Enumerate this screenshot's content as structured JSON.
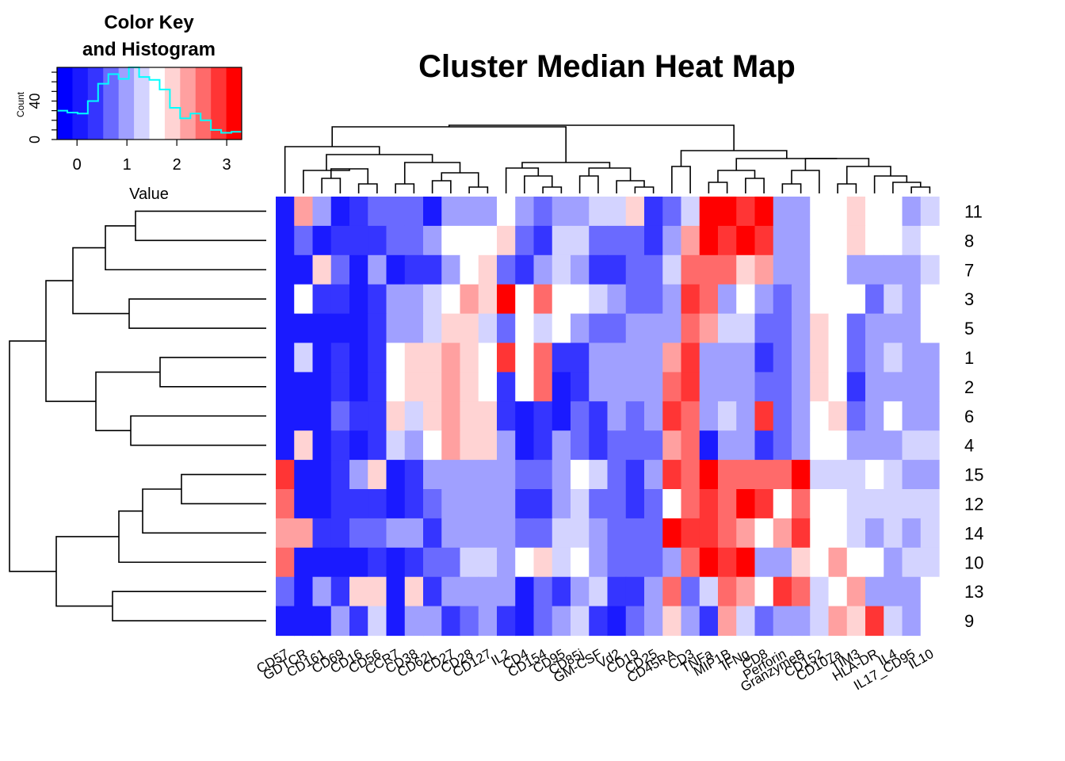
{
  "chart_data": {
    "type": "heatmap",
    "title": "Cluster Median Heat Map",
    "columns": [
      "CD57",
      "GDTCR",
      "CD161",
      "CD69",
      "CD16",
      "CD56",
      "CCR7",
      "CD38",
      "CD62L",
      "CD27",
      "CD28",
      "CD127",
      "IL2",
      "CD4",
      "CD154",
      "CD95",
      "CD85j",
      "GM-CSF",
      "Vd2",
      "CD19",
      "CD25",
      "CD45RA",
      "CD3",
      "TNFa",
      "MIP1B",
      "IFNg",
      "CD8",
      "Perforin",
      "GranzymeB",
      "CD152",
      "CD107a",
      "TIM3",
      "HLA-DR",
      "IL4",
      "IL17_CD95",
      "IL10"
    ],
    "rows": [
      "11",
      "8",
      "7",
      "3",
      "5",
      "1",
      "2",
      "6",
      "4",
      "15",
      "12",
      "14",
      "10",
      "13",
      "9"
    ],
    "values": [
      [
        0,
        2.3,
        0.9,
        0.1,
        0.3,
        0.6,
        0.6,
        0.8,
        0.2,
        0.9,
        0.9,
        1.1,
        1.6,
        1.1,
        0.6,
        0.9,
        1.1,
        1.4,
        1.4,
        2,
        0.4,
        0.6,
        1.4,
        3.2,
        3.3,
        2.7,
        3.2,
        0.9,
        1.1,
        1.7,
        1.7,
        2,
        1.7,
        1.7,
        0.9,
        1.4
      ],
      [
        0,
        0.6,
        0,
        0.3,
        0.3,
        0.4,
        0.6,
        0.6,
        1.1,
        1.7,
        1.7,
        1.7,
        2,
        0.6,
        0.4,
        1.4,
        1.4,
        0.6,
        0.6,
        0.6,
        0.4,
        1.1,
        2.3,
        3,
        2.7,
        3.2,
        2.7,
        0.9,
        1.1,
        1.7,
        1.7,
        2,
        1.7,
        1.7,
        1.4,
        1.7
      ],
      [
        0,
        0,
        1.9,
        0.6,
        0.1,
        1.1,
        0,
        0.4,
        0.4,
        1.1,
        1.7,
        1.9,
        0.6,
        0.4,
        0.9,
        1.4,
        1.1,
        0.4,
        0.4,
        0.6,
        0.6,
        1.4,
        2.4,
        2.4,
        2.4,
        1.9,
        2.2,
        1.1,
        1.1,
        1.7,
        1.7,
        1.1,
        1.1,
        1.1,
        1.1,
        1.4
      ],
      [
        0,
        1.7,
        0.3,
        0.3,
        0.1,
        0.4,
        1.1,
        0.9,
        1.4,
        1.7,
        2.2,
        1.9,
        3.2,
        1.7,
        2.4,
        1.7,
        1.7,
        1.4,
        0.9,
        0.6,
        0.6,
        1.1,
        2.7,
        2.4,
        0.9,
        1.7,
        0.9,
        0.6,
        1.1,
        1.7,
        1.7,
        1.7,
        0.6,
        1.4,
        1.1,
        1.7
      ],
      [
        0,
        0,
        0.1,
        0.1,
        0.1,
        0.4,
        0.9,
        0.9,
        1.4,
        1.9,
        1.9,
        1.4,
        0.6,
        1.7,
        1.4,
        1.7,
        0.9,
        0.6,
        0.6,
        1.1,
        0.9,
        1.1,
        2.4,
        2.2,
        1.4,
        1.4,
        0.6,
        0.6,
        1.1,
        1.9,
        1.7,
        0.6,
        1.1,
        1.1,
        1.1,
        1.7
      ],
      [
        0,
        1.4,
        0,
        0.3,
        0.1,
        0.4,
        1.7,
        1.9,
        1.9,
        2.2,
        1.9,
        1.7,
        2.7,
        1.7,
        2.4,
        0.4,
        0.3,
        1.1,
        0.9,
        0.9,
        0.9,
        2.2,
        2.7,
        1.1,
        1.1,
        1.1,
        0.4,
        0.6,
        1.1,
        1.9,
        1.7,
        0.6,
        0.9,
        1.4,
        1.1,
        1.1
      ],
      [
        0,
        0,
        0.1,
        0.3,
        0.1,
        0.3,
        1.7,
        1.9,
        1.9,
        2.2,
        1.9,
        1.7,
        0.3,
        1.7,
        2.4,
        0,
        0.3,
        1.1,
        0.9,
        0.9,
        0.9,
        2.4,
        2.7,
        0.9,
        1.1,
        1.1,
        0.6,
        0.6,
        1.1,
        1.9,
        1.7,
        0.3,
        0.9,
        1.1,
        1.1,
        1.1
      ],
      [
        0,
        0,
        0,
        0.6,
        0.4,
        0.3,
        1.9,
        1.4,
        1.9,
        2.2,
        1.9,
        1.9,
        0.4,
        0,
        0.4,
        0,
        0.6,
        0.3,
        0.9,
        0.6,
        0.9,
        2.7,
        2.4,
        1.1,
        1.4,
        1.1,
        2.7,
        0.6,
        1.1,
        1.7,
        1.9,
        0.6,
        1.1,
        1.7,
        1.1,
        1.1
      ],
      [
        0,
        1.9,
        0,
        0.3,
        0.1,
        0.3,
        1.4,
        1.1,
        1.7,
        2.2,
        1.9,
        1.9,
        0.9,
        0,
        0.3,
        0.9,
        0.6,
        0.3,
        0.6,
        0.6,
        0.6,
        2.2,
        2.4,
        0.1,
        1.1,
        1.1,
        0.4,
        0.6,
        1.1,
        1.7,
        1.7,
        0.9,
        0.9,
        1.1,
        1.4,
        1.4
      ],
      [
        2.7,
        0,
        0,
        0.4,
        0.9,
        1.9,
        0.1,
        0.4,
        0.9,
        1.1,
        1.1,
        1.1,
        1.1,
        0.6,
        0.6,
        0.9,
        1.7,
        1.4,
        0.6,
        0.4,
        0.9,
        2.7,
        2.4,
        3,
        2.4,
        2.4,
        2.4,
        2.4,
        3.2,
        1.4,
        1.4,
        1.4,
        1.7,
        1.4,
        1.1,
        1.1
      ],
      [
        2.4,
        0,
        0,
        0.3,
        0.4,
        0.4,
        0,
        0.4,
        0.6,
        0.9,
        1.1,
        1.1,
        0.9,
        0.4,
        0.4,
        1.1,
        1.4,
        0.6,
        0.6,
        0.4,
        0.6,
        1.7,
        2.4,
        2.7,
        2.4,
        3.1,
        2.7,
        1.7,
        2.4,
        1.7,
        1.7,
        1.4,
        1.4,
        1.4,
        1.4,
        1.4
      ],
      [
        2.2,
        2.2,
        0.4,
        0.3,
        0.6,
        0.6,
        0.9,
        0.9,
        0.4,
        1.1,
        0.9,
        0.9,
        1.1,
        0.6,
        0.6,
        1.4,
        1.4,
        0.9,
        0.6,
        0.6,
        0.6,
        3.2,
        2.7,
        2.7,
        2.4,
        2.2,
        1.7,
        2.2,
        2.7,
        1.7,
        1.7,
        1.4,
        1.1,
        1.4,
        1.1,
        1.4
      ],
      [
        2.4,
        0.1,
        0.1,
        0.1,
        0.1,
        0.3,
        0.1,
        0.4,
        0.6,
        0.6,
        1.4,
        1.4,
        1.1,
        1.7,
        1.9,
        1.4,
        1.7,
        1.1,
        0.6,
        0.6,
        0.6,
        1.1,
        2.4,
        3.2,
        2.7,
        3.2,
        0.9,
        1.1,
        1.9,
        1.7,
        2.2,
        1.7,
        1.7,
        1.1,
        1.4,
        1.4
      ],
      [
        0.6,
        0,
        0.9,
        0.3,
        1.9,
        1.9,
        0,
        1.9,
        0.4,
        1.1,
        0.9,
        1.1,
        0.9,
        0,
        0.6,
        0.4,
        0.9,
        1.4,
        0.3,
        0.3,
        0.9,
        2.4,
        0.6,
        1.4,
        2.4,
        2.2,
        1.7,
        2.7,
        2.4,
        1.4,
        1.7,
        2.2,
        1.1,
        1.1,
        0.9,
        1.7
      ],
      [
        0,
        0,
        0,
        0.9,
        0.4,
        1.4,
        0.1,
        0.9,
        1.1,
        0.4,
        0.6,
        1.1,
        0.4,
        0,
        0.6,
        0.9,
        1.4,
        0.4,
        0.1,
        0.6,
        1.1,
        1.9,
        1.1,
        0.4,
        2.2,
        1.4,
        0.6,
        1.1,
        1.1,
        1.4,
        2.2,
        1.9,
        2.7,
        1.4,
        1.1,
        1.7
      ]
    ],
    "color_key": {
      "title_line1": "Color Key",
      "title_line2": "and Histogram",
      "xlabel": "Value",
      "ylabel": "Count",
      "x_ticks": [
        "0",
        "1",
        "2",
        "3"
      ],
      "y_ticks": [
        "0",
        "40"
      ],
      "xlim": [
        -0.4,
        3.3
      ],
      "ylim": [
        0,
        75
      ],
      "low_color": "#0000FF",
      "mid_color": "#FFFFFF",
      "high_color": "#FF0000",
      "histogram_color": "#00FFFF",
      "histogram_counts": [
        30,
        28,
        27,
        40,
        58,
        68,
        63,
        75,
        65,
        62,
        52,
        33,
        22,
        27,
        20,
        10,
        7,
        8
      ]
    },
    "row_order_top_to_bottom": [
      "11",
      "8",
      "7",
      "3",
      "5",
      "1",
      "2",
      "6",
      "4",
      "15",
      "12",
      "14",
      "10",
      "13",
      "9"
    ],
    "legend": "top-left",
    "grid": false
  }
}
